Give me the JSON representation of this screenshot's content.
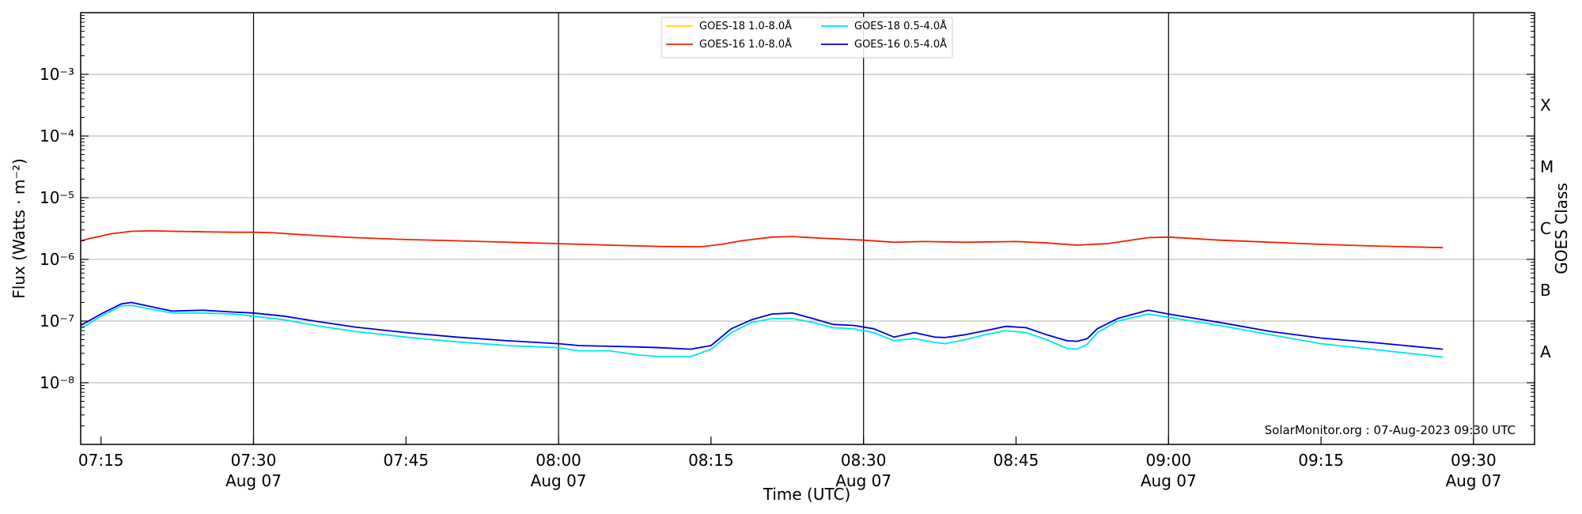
{
  "chart_data": {
    "type": "line",
    "xlabel": "Time (UTC)",
    "ylabel": "Flux (Watts · m⁻²)",
    "right_label": "GOES Class",
    "y_scale": "log",
    "ylim": [
      1e-09,
      0.01
    ],
    "xlim": [
      "07:13",
      "09:36"
    ],
    "x_ticks": [
      {
        "time": "07:15",
        "label": "07:15",
        "date": ""
      },
      {
        "time": "07:30",
        "label": "07:30",
        "date": "Aug 07"
      },
      {
        "time": "07:45",
        "label": "07:45",
        "date": ""
      },
      {
        "time": "08:00",
        "label": "08:00",
        "date": "Aug 07"
      },
      {
        "time": "08:15",
        "label": "08:15",
        "date": ""
      },
      {
        "time": "08:30",
        "label": "08:30",
        "date": "Aug 07"
      },
      {
        "time": "08:45",
        "label": "08:45",
        "date": ""
      },
      {
        "time": "09:00",
        "label": "09:00",
        "date": "Aug 07"
      },
      {
        "time": "09:15",
        "label": "09:15",
        "date": ""
      },
      {
        "time": "09:30",
        "label": "09:30",
        "date": "Aug 07"
      }
    ],
    "vertical_lines": [
      "07:30",
      "08:00",
      "08:30",
      "09:00",
      "09:30"
    ],
    "y_ticks": [
      {
        "exp": -8,
        "label": "10⁻⁸"
      },
      {
        "exp": -7,
        "label": "10⁻⁷"
      },
      {
        "exp": -6,
        "label": "10⁻⁶"
      },
      {
        "exp": -5,
        "label": "10⁻⁵"
      },
      {
        "exp": -4,
        "label": "10⁻⁴"
      },
      {
        "exp": -3,
        "label": "10⁻³"
      }
    ],
    "goes_classes": [
      {
        "label": "A",
        "exp": -7.5
      },
      {
        "label": "B",
        "exp": -6.5
      },
      {
        "label": "C",
        "exp": -5.5
      },
      {
        "label": "M",
        "exp": -4.5
      },
      {
        "label": "X",
        "exp": -3.5
      }
    ],
    "legend": {
      "placement": "top-center"
    },
    "credit": "SolarMonitor.org : 07-Aug-2023 09:30 UTC",
    "series": [
      {
        "name": "GOES-18 1.0-8.0Å",
        "color": "#ffd700",
        "x": [],
        "y": []
      },
      {
        "name": "GOES-16 1.0-8.0Å",
        "color": "#ee2200",
        "x": [
          "07:13",
          "07:14",
          "07:16",
          "07:18",
          "07:20",
          "07:22",
          "07:25",
          "07:28",
          "07:30",
          "07:32",
          "07:35",
          "07:40",
          "07:45",
          "07:50",
          "07:55",
          "08:00",
          "08:05",
          "08:10",
          "08:14",
          "08:16",
          "08:18",
          "08:21",
          "08:23",
          "08:26",
          "08:30",
          "08:33",
          "08:36",
          "08:40",
          "08:45",
          "08:48",
          "08:51",
          "08:54",
          "08:58",
          "09:00",
          "09:05",
          "09:10",
          "09:15",
          "09:20",
          "09:27"
        ],
        "y": [
          2e-06,
          2.2e-06,
          2.6e-06,
          2.85e-06,
          2.9e-06,
          2.85e-06,
          2.8e-06,
          2.75e-06,
          2.75e-06,
          2.7e-06,
          2.5e-06,
          2.25e-06,
          2.1e-06,
          2e-06,
          1.9e-06,
          1.8e-06,
          1.7e-06,
          1.62e-06,
          1.6e-06,
          1.75e-06,
          2e-06,
          2.3e-06,
          2.35e-06,
          2.2e-06,
          2.05e-06,
          1.9e-06,
          1.95e-06,
          1.9e-06,
          1.95e-06,
          1.85e-06,
          1.7e-06,
          1.8e-06,
          2.25e-06,
          2.3e-06,
          2.05e-06,
          1.9e-06,
          1.75e-06,
          1.65e-06,
          1.55e-06
        ]
      },
      {
        "name": "GOES-18 0.5-4.0Å",
        "color": "#00e5ee",
        "x": [
          "07:13",
          "07:14",
          "07:15",
          "07:17",
          "07:18",
          "07:20",
          "07:22",
          "07:25",
          "07:28",
          "07:30",
          "07:33",
          "07:36",
          "07:40",
          "07:45",
          "07:50",
          "07:55",
          "08:00",
          "08:02",
          "08:05",
          "08:08",
          "08:10",
          "08:13",
          "08:15",
          "08:17",
          "08:19",
          "08:21",
          "08:23",
          "08:25",
          "08:27",
          "08:29",
          "08:31",
          "08:33",
          "08:35",
          "08:37",
          "08:38",
          "08:40",
          "08:42",
          "08:44",
          "08:46",
          "08:48",
          "08:50",
          "08:51",
          "08:52",
          "08:53",
          "08:55",
          "08:58",
          "09:00",
          "09:05",
          "09:10",
          "09:15",
          "09:20",
          "09:27"
        ],
        "y": [
          7.5e-08,
          9.5e-08,
          1.2e-07,
          1.75e-07,
          1.8e-07,
          1.55e-07,
          1.35e-07,
          1.35e-07,
          1.3e-07,
          1.2e-07,
          1.05e-07,
          8.5e-08,
          6.8e-08,
          5.5e-08,
          4.6e-08,
          4e-08,
          3.7e-08,
          3.3e-08,
          3.3e-08,
          2.8e-08,
          2.65e-08,
          2.65e-08,
          3.5e-08,
          6.5e-08,
          9.5e-08,
          1.1e-07,
          1.1e-07,
          9.5e-08,
          7.8e-08,
          7.5e-08,
          6.5e-08,
          4.8e-08,
          5.2e-08,
          4.5e-08,
          4.3e-08,
          5e-08,
          6e-08,
          7e-08,
          6.5e-08,
          5e-08,
          3.6e-08,
          3.5e-08,
          4.2e-08,
          6.5e-08,
          1e-07,
          1.3e-07,
          1.15e-07,
          8.5e-08,
          6e-08,
          4.3e-08,
          3.5e-08,
          2.6e-08
        ]
      },
      {
        "name": "GOES-16 0.5-4.0Å",
        "color": "#0000dd",
        "x": [
          "07:13",
          "07:14",
          "07:15",
          "07:17",
          "07:18",
          "07:20",
          "07:22",
          "07:25",
          "07:28",
          "07:30",
          "07:33",
          "07:36",
          "07:40",
          "07:45",
          "07:50",
          "07:55",
          "08:00",
          "08:02",
          "08:05",
          "08:08",
          "08:10",
          "08:13",
          "08:15",
          "08:17",
          "08:19",
          "08:21",
          "08:23",
          "08:25",
          "08:27",
          "08:29",
          "08:31",
          "08:33",
          "08:35",
          "08:37",
          "08:38",
          "08:40",
          "08:42",
          "08:44",
          "08:46",
          "08:48",
          "08:50",
          "08:51",
          "08:52",
          "08:53",
          "08:55",
          "08:58",
          "09:00",
          "09:05",
          "09:10",
          "09:15",
          "09:20",
          "09:27"
        ],
        "y": [
          8.5e-08,
          1.05e-07,
          1.3e-07,
          1.9e-07,
          2e-07,
          1.7e-07,
          1.45e-07,
          1.5e-07,
          1.4e-07,
          1.35e-07,
          1.2e-07,
          1e-07,
          8e-08,
          6.5e-08,
          5.5e-08,
          4.8e-08,
          4.3e-08,
          4e-08,
          3.9e-08,
          3.8e-08,
          3.7e-08,
          3.5e-08,
          4e-08,
          7.5e-08,
          1.05e-07,
          1.3e-07,
          1.35e-07,
          1.1e-07,
          8.8e-08,
          8.5e-08,
          7.5e-08,
          5.5e-08,
          6.5e-08,
          5.5e-08,
          5.4e-08,
          6e-08,
          7e-08,
          8.2e-08,
          7.8e-08,
          6e-08,
          4.8e-08,
          4.7e-08,
          5.2e-08,
          7.5e-08,
          1.1e-07,
          1.5e-07,
          1.3e-07,
          9.5e-08,
          6.8e-08,
          5.3e-08,
          4.5e-08,
          3.5e-08
        ]
      }
    ]
  }
}
